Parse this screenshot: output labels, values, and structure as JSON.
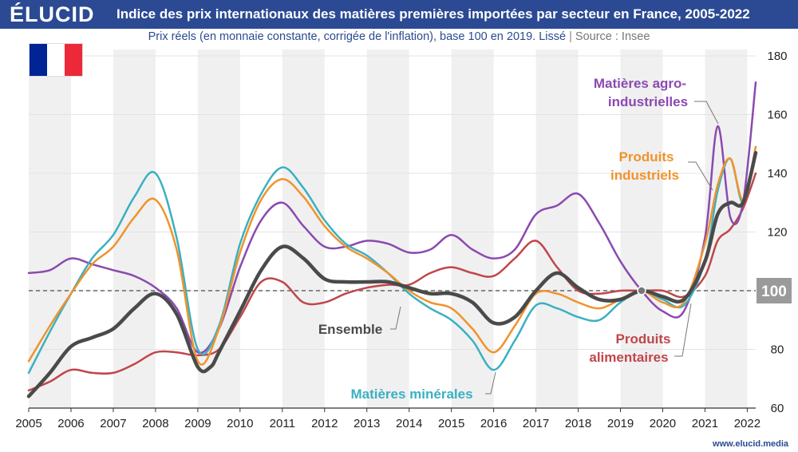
{
  "header": {
    "logo": "ÉLUCID",
    "title": "Indice des prix internationaux des matières premières importées par secteur en France, 2005-2022",
    "subtitle": "Prix réels (en monnaie constante, corrigée de l'inflation), base 100 en 2019. Lissé",
    "separator": "|",
    "source": "Source : Insee",
    "footer": "www.elucid.media"
  },
  "flag_colors": [
    "#002395",
    "#ffffff",
    "#ed2939"
  ],
  "chart_data": {
    "type": "line",
    "x_ticks": [
      "2005",
      "2006",
      "2007",
      "2008",
      "2009",
      "2010",
      "2011",
      "2012",
      "2013",
      "2014",
      "2015",
      "2016",
      "2017",
      "2018",
      "2019",
      "2020",
      "2021",
      "2022"
    ],
    "y_ticks": [
      60,
      80,
      100,
      120,
      140,
      160,
      180
    ],
    "xlim": [
      2005,
      2022.2
    ],
    "ylim": [
      60,
      180
    ],
    "reference_line": {
      "y": 100,
      "label": "100"
    },
    "annotations": [
      {
        "text": "Ensemble",
        "series": "ensemble"
      },
      {
        "text": "Matières minérales",
        "series": "minerales"
      },
      {
        "text": "Matières agro-industrielles",
        "series": "agro"
      },
      {
        "text": "Produits industriels",
        "series": "industriels"
      },
      {
        "text": "Produits alimentaires",
        "series": "alimentaires"
      }
    ],
    "series": [
      {
        "name": "Ensemble",
        "key": "ensemble",
        "color": "#4a4a4a",
        "width": 4.5,
        "x": [
          2005,
          2005.5,
          2006,
          2006.5,
          2007,
          2007.5,
          2008,
          2008.5,
          2009,
          2009.3,
          2009.5,
          2010,
          2010.5,
          2011,
          2011.5,
          2012,
          2012.5,
          2013,
          2013.5,
          2014,
          2014.5,
          2015,
          2015.5,
          2016,
          2016.5,
          2017,
          2017.5,
          2018,
          2018.5,
          2019,
          2019.5,
          2020,
          2020.5,
          2021,
          2021.3,
          2021.6,
          2021.9,
          2022.2
        ],
        "y": [
          64,
          72,
          81,
          84,
          87,
          94,
          99,
          92,
          74,
          74,
          79,
          93,
          107,
          115,
          111,
          104,
          103,
          103,
          103,
          101,
          99,
          99,
          96,
          89,
          91,
          100,
          106,
          101,
          97,
          97,
          100,
          98,
          97,
          110,
          126,
          130,
          130,
          147
        ]
      },
      {
        "name": "Matières minérales",
        "key": "minerales",
        "color": "#3ab0c2",
        "width": 2.5,
        "x": [
          2005,
          2005.5,
          2006,
          2006.5,
          2007,
          2007.5,
          2008,
          2008.5,
          2009,
          2009.5,
          2010,
          2010.5,
          2011,
          2011.5,
          2012,
          2012.5,
          2013,
          2013.5,
          2014,
          2014.5,
          2015,
          2015.5,
          2016,
          2016.5,
          2017,
          2017.5,
          2018,
          2018.5,
          2019,
          2019.5,
          2020,
          2020.5,
          2021,
          2021.3,
          2021.6,
          2021.9,
          2022.2
        ],
        "y": [
          72,
          86,
          99,
          111,
          119,
          132,
          140,
          118,
          80,
          88,
          116,
          133,
          142,
          135,
          124,
          116,
          112,
          106,
          99,
          94,
          90,
          83,
          73,
          83,
          95,
          94,
          91,
          90,
          96,
          100,
          97,
          95,
          110,
          134,
          145,
          130,
          147
        ]
      },
      {
        "name": "Produits industriels",
        "key": "industriels",
        "color": "#f0932b",
        "width": 2.5,
        "x": [
          2005,
          2005.5,
          2006,
          2006.5,
          2007,
          2007.5,
          2008,
          2008.5,
          2009,
          2009.5,
          2010,
          2010.5,
          2011,
          2011.5,
          2012,
          2012.5,
          2013,
          2013.5,
          2014,
          2014.5,
          2015,
          2015.5,
          2016,
          2016.5,
          2017,
          2017.5,
          2018,
          2018.5,
          2019,
          2019.5,
          2020,
          2020.5,
          2021,
          2021.3,
          2021.6,
          2021.9,
          2022.2
        ],
        "y": [
          76,
          88,
          99,
          109,
          115,
          125,
          131,
          114,
          76,
          87,
          113,
          131,
          138,
          132,
          122,
          115,
          111,
          106,
          100,
          96,
          94,
          87,
          79,
          88,
          99,
          99,
          96,
          94,
          97,
          100,
          96,
          96,
          116,
          136,
          145,
          131,
          149
        ]
      },
      {
        "name": "Matières agro-industrielles",
        "key": "agro",
        "color": "#8a4ab0",
        "width": 2.5,
        "x": [
          2005,
          2005.5,
          2006,
          2006.5,
          2007,
          2007.5,
          2008,
          2008.5,
          2009,
          2009.5,
          2010,
          2010.5,
          2011,
          2011.5,
          2012,
          2012.5,
          2013,
          2013.5,
          2014,
          2014.5,
          2015,
          2015.5,
          2016,
          2016.5,
          2017,
          2017.5,
          2018,
          2018.5,
          2019,
          2019.5,
          2020,
          2020.5,
          2021,
          2021.3,
          2021.6,
          2021.9,
          2022.2
        ],
        "y": [
          106,
          107,
          111,
          109,
          107,
          105,
          101,
          94,
          79,
          87,
          108,
          124,
          130,
          122,
          115,
          115,
          117,
          116,
          113,
          114,
          119,
          114,
          111,
          114,
          126,
          129,
          133,
          123,
          110,
          100,
          93,
          93,
          118,
          156,
          125,
          130,
          171
        ]
      },
      {
        "name": "Produits alimentaires",
        "key": "alimentaires",
        "color": "#c0464a",
        "width": 2.5,
        "x": [
          2005,
          2005.5,
          2006,
          2006.5,
          2007,
          2007.5,
          2008,
          2008.5,
          2009,
          2009.5,
          2010,
          2010.5,
          2011,
          2011.5,
          2012,
          2012.5,
          2013,
          2013.5,
          2014,
          2014.5,
          2015,
          2015.5,
          2016,
          2016.5,
          2017,
          2017.5,
          2018,
          2018.5,
          2019,
          2019.5,
          2020,
          2020.5,
          2021,
          2021.3,
          2021.6,
          2021.9,
          2022.2
        ],
        "y": [
          66,
          69,
          73,
          72,
          72,
          75,
          79,
          79,
          78,
          80,
          91,
          103,
          103,
          96,
          96,
          99,
          101,
          102,
          102,
          106,
          108,
          106,
          105,
          111,
          117,
          108,
          100,
          99,
          100,
          100,
          100,
          98,
          105,
          117,
          121,
          128,
          140
        ]
      }
    ]
  }
}
